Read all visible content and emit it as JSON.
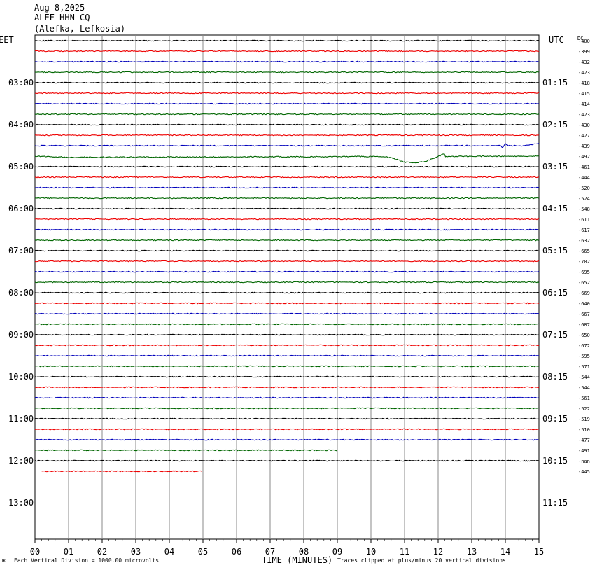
{
  "header": {
    "date": "Aug 8,2025",
    "station": "ALEF HHN CQ --",
    "location": "(Alefka, Lefkosia)"
  },
  "footer": {
    "scale": "Each Vertical Division = 1000.00 microvolts",
    "xlabel": "TIME (MINUTES)",
    "clip": "Traces clipped at plus/minus 20 vertical divisions",
    "corner": "JK"
  },
  "chart_data": {
    "type": "line",
    "title": "ALEF HHN CQ --",
    "xlabel": "TIME (MINUTES)",
    "ylabel": "",
    "left_axis_label": "EET",
    "right_axis_label": "UTC",
    "dc_header": "DC",
    "x_ticks": [
      "00",
      "01",
      "02",
      "03",
      "04",
      "05",
      "06",
      "07",
      "08",
      "09",
      "10",
      "11",
      "12",
      "13",
      "14",
      "15"
    ],
    "xlim": [
      0,
      15
    ],
    "row_minutes": 15,
    "left_hour_labels": [
      "03:00",
      "04:00",
      "05:00",
      "06:00",
      "07:00",
      "08:00",
      "09:00",
      "10:00",
      "11:00",
      "12:00",
      "13:00"
    ],
    "right_hour_labels": [
      "01:15",
      "02:15",
      "03:15",
      "04:15",
      "05:15",
      "06:15",
      "07:15",
      "08:15",
      "09:15",
      "10:15",
      "11:15"
    ],
    "dc_offsets": [
      "-400",
      "-399",
      "-432",
      "-423",
      "-418",
      "-415",
      "-414",
      "-423",
      "-430",
      "-427",
      "-439",
      "-492",
      "-461",
      "-444",
      "-520",
      "-524",
      "-548",
      "-611",
      "-617",
      "-632",
      "-665",
      "-702",
      "-695",
      "-652",
      "-669",
      "-640",
      "-667",
      "-687",
      "-650",
      "-672",
      "-595",
      "-571",
      "-544",
      "-544",
      "-561",
      "-522",
      "-519",
      "-510",
      "-477",
      "-491",
      "-nan",
      "-445"
    ],
    "trace_colors": [
      "#000000",
      "#ee0000",
      "#0000bb",
      "#006600"
    ],
    "traces_count": 42,
    "traces_end_minute": {
      "39": 9.0,
      "41": 5.0
    },
    "traces_start_minute": {
      "41": 0.2
    },
    "event": {
      "trace": 11,
      "start_minute": 10.3,
      "end_minute": 12.2,
      "drop_divisions": 0.6
    },
    "drift_trace": {
      "trace": 11,
      "start_div": -0.3,
      "end_div": 0.0
    }
  }
}
